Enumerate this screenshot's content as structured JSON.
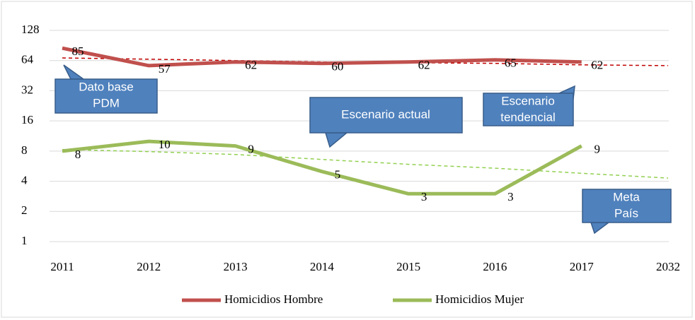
{
  "chart_data": {
    "type": "line",
    "categories": [
      "2011",
      "2012",
      "2013",
      "2014",
      "2015",
      "2016",
      "2017",
      "2032"
    ],
    "series": [
      {
        "name": "Homicidios Hombre",
        "color": "#c0504d",
        "values": [
          85,
          57,
          62,
          60,
          62,
          65,
          62,
          null
        ]
      },
      {
        "name": "Homicidios Mujer",
        "color": "#9bbb59",
        "values": [
          8,
          10,
          9,
          5,
          3,
          3,
          9,
          null
        ]
      }
    ],
    "trend_lines": [
      {
        "color": "#c00000",
        "values": [
          68,
          66,
          64,
          62,
          61,
          60,
          58,
          57
        ]
      },
      {
        "color": "#92d050",
        "values": [
          8.3,
          7.9,
          7.4,
          6.6,
          5.9,
          5.4,
          4.8,
          4.3
        ]
      }
    ],
    "ylim": [
      1,
      128
    ],
    "yticks": [
      1,
      2,
      4,
      8,
      16,
      32,
      64,
      128
    ],
    "log_scale": true,
    "grid": true,
    "legend": "bottom",
    "annotations": [
      {
        "lines": [
          "Dato base",
          "PDM"
        ]
      },
      {
        "lines": [
          "Escenario actual"
        ]
      },
      {
        "lines": [
          "Escenario",
          "tendencial"
        ]
      },
      {
        "lines": [
          "Meta",
          "País"
        ]
      }
    ]
  }
}
